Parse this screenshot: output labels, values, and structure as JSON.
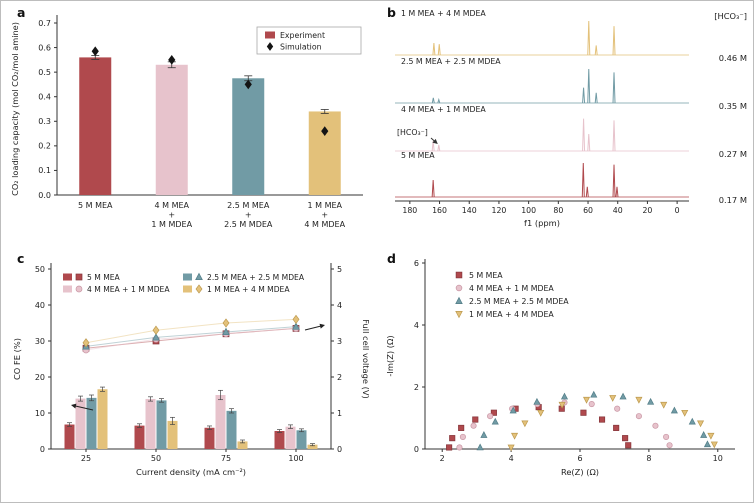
{
  "figure_labels": {
    "a": "a",
    "b": "b",
    "c": "c",
    "d": "d"
  },
  "colors": {
    "red": "#b0494d",
    "red_edge": "#84353a",
    "pink": "#e7c3cc",
    "pink_edge": "#c996a4",
    "teal": "#719ba5",
    "teal_edge": "#527d87",
    "gold": "#e3c17a",
    "gold_edge": "#bd9a4f",
    "sim": "#141414",
    "axis": "#333333",
    "text": "#222222"
  },
  "chart_data": [
    {
      "panel": "a",
      "type": "bar",
      "ylabel": "CO₂ loading capacity (mol CO₂/mol amine)",
      "ylim": [
        0,
        0.7
      ],
      "yticks": [
        0.0,
        0.1,
        0.2,
        0.3,
        0.4,
        0.5,
        0.6,
        0.7
      ],
      "categories": [
        [
          "5 M MEA"
        ],
        [
          "4 M MEA",
          "+",
          "1 M MDEA"
        ],
        [
          "2.5 M MEA",
          "+",
          "2.5 M MDEA"
        ],
        [
          "1 M MEA",
          "+",
          "4 M MDEA"
        ]
      ],
      "bar_colors": [
        "red",
        "pink",
        "teal",
        "gold"
      ],
      "experiment": [
        0.56,
        0.53,
        0.475,
        0.34
      ],
      "experiment_err": [
        0.008,
        0.012,
        0.01,
        0.008
      ],
      "simulation": [
        0.585,
        0.55,
        0.45,
        0.26
      ],
      "legend": [
        {
          "label": "Experiment",
          "marker": "square",
          "color": "red"
        },
        {
          "label": "Simulation",
          "marker": "diamond",
          "color": "sim"
        }
      ]
    },
    {
      "panel": "b",
      "type": "nmr",
      "xlabel": "f1 (ppm)",
      "xlim": [
        190,
        -8
      ],
      "xticks": [
        180,
        160,
        140,
        120,
        100,
        80,
        60,
        40,
        20,
        0
      ],
      "right_header": "[HCO₃⁻]",
      "annotation_label": "[HCO₃⁻]",
      "annotation_peak_ppm": 160.5,
      "traces": [
        {
          "label": "1 M MEA + 4 M MDEA",
          "bicarbonate": "0.46 M",
          "color": "gold",
          "peaks": [
            [
              163.8,
              0.35
            ],
            [
              160.2,
              0.32
            ],
            [
              59.5,
              1.0
            ],
            [
              54.5,
              0.28
            ],
            [
              42.5,
              0.85
            ]
          ]
        },
        {
          "label": "2.5 M MEA + 2.5 M MDEA",
          "bicarbonate": "0.35 M",
          "color": "teal",
          "peaks": [
            [
              164.2,
              0.15
            ],
            [
              160.5,
              0.1
            ],
            [
              63.0,
              0.45
            ],
            [
              59.5,
              1.0
            ],
            [
              54.5,
              0.3
            ],
            [
              42.5,
              0.9
            ]
          ]
        },
        {
          "label": "4 M MEA + 1 M MDEA",
          "bicarbonate": "0.27 M",
          "color": "pink",
          "peaks": [
            [
              164.3,
              0.3
            ],
            [
              160.5,
              0.18
            ],
            [
              63.0,
              0.95
            ],
            [
              59.5,
              0.5
            ],
            [
              42.5,
              0.9
            ]
          ]
        },
        {
          "label": "5 M MEA",
          "bicarbonate": "0.17 M",
          "color": "red",
          "peaks": [
            [
              164.3,
              0.5
            ],
            [
              63.2,
              1.0
            ],
            [
              60.5,
              0.3
            ],
            [
              42.5,
              0.95
            ],
            [
              40.5,
              0.3
            ]
          ]
        }
      ]
    },
    {
      "panel": "c",
      "type": "bar+line",
      "xlabel": "Current density (mA cm⁻²)",
      "ylabel_left": "CO FE (%)",
      "ylabel_right": "Full cell voltage (V)",
      "ylim_left": [
        0,
        50
      ],
      "yticks_left": [
        0,
        10,
        20,
        30,
        40,
        50
      ],
      "ylim_right": [
        0,
        5
      ],
      "yticks_right": [
        0,
        1,
        2,
        3,
        4,
        5
      ],
      "categories": [
        25,
        50,
        75,
        100
      ],
      "series": [
        {
          "name": "5 M MEA",
          "color": "red",
          "marker": "square",
          "co_fe": [
            6.8,
            6.5,
            5.9,
            5.0
          ],
          "co_fe_err": [
            0.5,
            0.5,
            0.5,
            0.4
          ],
          "voltage": [
            2.8,
            3.0,
            3.2,
            3.35
          ]
        },
        {
          "name": "4 M MEA + 1 M MDEA",
          "color": "pink",
          "marker": "circle",
          "co_fe": [
            14.0,
            13.9,
            15.0,
            6.2
          ],
          "co_fe_err": [
            0.7,
            0.6,
            1.3,
            0.5
          ],
          "voltage": [
            2.75,
            3.05,
            3.2,
            3.35
          ]
        },
        {
          "name": "2.5 M MEA + 2.5 M MDEA",
          "color": "teal",
          "marker": "triangle-up",
          "co_fe": [
            14.2,
            13.5,
            10.6,
            5.2
          ],
          "co_fe_err": [
            0.8,
            0.5,
            0.6,
            0.4
          ],
          "voltage": [
            2.85,
            3.1,
            3.25,
            3.4
          ]
        },
        {
          "name": "1 M MEA + 4 M MDEA",
          "color": "gold",
          "marker": "diamond",
          "co_fe": [
            16.6,
            7.8,
            2.1,
            1.2
          ],
          "co_fe_err": [
            0.6,
            1.0,
            0.4,
            0.3
          ],
          "voltage": [
            2.95,
            3.3,
            3.5,
            3.6
          ]
        }
      ]
    },
    {
      "panel": "d",
      "type": "scatter",
      "xlabel": "Re(Z) (Ω)",
      "ylabel": "-Im(Z) (Ω)",
      "xlim": [
        1.5,
        10.5
      ],
      "xticks": [
        2,
        4,
        6,
        8,
        10
      ],
      "ylim": [
        0,
        6
      ],
      "yticks": [
        0,
        2,
        4,
        6
      ],
      "series": [
        {
          "name": "5 M MEA",
          "color": "red",
          "marker": "square",
          "points": [
            [
              2.2,
              0.05
            ],
            [
              2.29,
              0.35
            ],
            [
              2.55,
              0.68
            ],
            [
              2.96,
              0.95
            ],
            [
              3.5,
              1.17
            ],
            [
              4.13,
              1.3
            ],
            [
              4.8,
              1.35
            ],
            [
              5.47,
              1.3
            ],
            [
              6.1,
              1.17
            ],
            [
              6.64,
              0.95
            ],
            [
              7.05,
              0.68
            ],
            [
              7.31,
              0.35
            ],
            [
              7.4,
              0.12
            ]
          ]
        },
        {
          "name": "4 M MEA + 1 M MDEA",
          "color": "pink",
          "marker": "circle",
          "points": [
            [
              2.5,
              0.05
            ],
            [
              2.6,
              0.39
            ],
            [
              2.91,
              0.75
            ],
            [
              3.39,
              1.06
            ],
            [
              4.03,
              1.3
            ],
            [
              4.76,
              1.45
            ],
            [
              5.55,
              1.5
            ],
            [
              6.34,
              1.45
            ],
            [
              7.08,
              1.3
            ],
            [
              7.71,
              1.06
            ],
            [
              8.19,
              0.75
            ],
            [
              8.5,
              0.39
            ],
            [
              8.6,
              0.12
            ]
          ]
        },
        {
          "name": "2.5 M MEA + 2.5 M MDEA",
          "color": "teal",
          "marker": "triangle-up",
          "points": [
            [
              3.1,
              0.05
            ],
            [
              3.21,
              0.45
            ],
            [
              3.54,
              0.88
            ],
            [
              4.06,
              1.24
            ],
            [
              4.75,
              1.52
            ],
            [
              5.55,
              1.69
            ],
            [
              6.4,
              1.75
            ],
            [
              7.25,
              1.69
            ],
            [
              8.05,
              1.52
            ],
            [
              8.74,
              1.24
            ],
            [
              9.26,
              0.88
            ],
            [
              9.59,
              0.45
            ],
            [
              9.7,
              0.15
            ]
          ]
        },
        {
          "name": "1 M MEA + 4 M MDEA",
          "color": "gold",
          "marker": "triangle-down",
          "points": [
            [
              4.0,
              0.05
            ],
            [
              4.1,
              0.43
            ],
            [
              4.4,
              0.83
            ],
            [
              4.86,
              1.17
            ],
            [
              5.48,
              1.43
            ],
            [
              6.19,
              1.59
            ],
            [
              6.95,
              1.65
            ],
            [
              7.71,
              1.59
            ],
            [
              8.43,
              1.43
            ],
            [
              9.04,
              1.17
            ],
            [
              9.5,
              0.83
            ],
            [
              9.8,
              0.43
            ],
            [
              9.9,
              0.15
            ]
          ]
        }
      ]
    }
  ]
}
